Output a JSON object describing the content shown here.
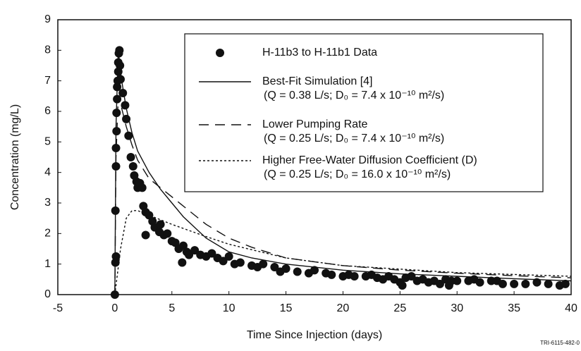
{
  "chart_data": {
    "type": "scatter-line",
    "xlabel": "Time Since Injection (days)",
    "ylabel": "Concentration (mg/L)",
    "figure_id": "TRI-6115-482-0",
    "xlim": [
      -5,
      40
    ],
    "xticks": [
      -5,
      0,
      5,
      10,
      15,
      20,
      25,
      30,
      35,
      40
    ],
    "ylim": [
      0,
      9
    ],
    "yticks": [
      0,
      1,
      2,
      3,
      4,
      5,
      6,
      7,
      8,
      9
    ],
    "series": [
      {
        "name": "H-11b3 to H-11b1 Data",
        "style": "markers",
        "color": "#111111",
        "x": [
          0,
          0.05,
          0.1,
          0.05,
          0.1,
          0.1,
          0.15,
          0.15,
          0.2,
          0.2,
          0.25,
          0.3,
          0.3,
          0.35,
          0.4,
          0.45,
          0.5,
          0.7,
          0.9,
          1.0,
          1.2,
          1.4,
          1.6,
          1.7,
          1.9,
          2.0,
          2.2,
          2.4,
          2.5,
          2.7,
          2.7,
          3.0,
          3.3,
          3.5,
          3.9,
          4.0,
          4.3,
          4.6,
          5.0,
          5.3,
          5.6,
          5.9,
          6.0,
          6.3,
          6.5,
          7.0,
          7.5,
          8.0,
          8.5,
          9.0,
          9.5,
          10.0,
          10.5,
          11,
          12,
          12.5,
          13,
          14,
          14.5,
          15,
          16,
          17,
          17.5,
          18.5,
          19,
          20,
          20.5,
          21,
          22,
          22.5,
          23,
          23.5,
          24,
          24.5,
          25,
          25.2,
          25.5,
          26,
          26.5,
          27,
          27.5,
          28,
          28.5,
          29,
          29.3,
          29.5,
          30,
          31,
          31.5,
          32,
          33,
          33.5,
          34,
          35,
          36,
          37,
          38,
          39,
          39.5
        ],
        "values": [
          0,
          1.05,
          1.25,
          2.75,
          4.2,
          4.8,
          5.35,
          5.95,
          6.4,
          6.8,
          7.0,
          7.3,
          7.6,
          7.9,
          8.0,
          7.5,
          7.05,
          6.6,
          6.2,
          5.75,
          5.2,
          4.5,
          4.2,
          3.9,
          3.7,
          3.5,
          3.65,
          3.5,
          2.9,
          2.7,
          1.95,
          2.6,
          2.4,
          2.2,
          2.05,
          2.3,
          1.95,
          2.0,
          1.75,
          1.7,
          1.5,
          1.05,
          1.6,
          1.4,
          1.3,
          1.45,
          1.3,
          1.25,
          1.35,
          1.2,
          1.1,
          1.25,
          1.0,
          1.05,
          0.95,
          0.9,
          1.0,
          0.9,
          0.75,
          0.85,
          0.75,
          0.7,
          0.8,
          0.7,
          0.65,
          0.6,
          0.65,
          0.6,
          0.6,
          0.65,
          0.55,
          0.5,
          0.6,
          0.5,
          0.4,
          0.3,
          0.55,
          0.6,
          0.45,
          0.5,
          0.4,
          0.45,
          0.35,
          0.5,
          0.3,
          0.45,
          0.45,
          0.45,
          0.5,
          0.4,
          0.45,
          0.45,
          0.35,
          0.35,
          0.35,
          0.4,
          0.35,
          0.3,
          0.35
        ]
      },
      {
        "name": "Best-Fit Simulation [4]",
        "params": "(Q = 0.38 L/s; D₀ = 7.4 x 10⁻¹⁰ m²/s)",
        "style": "solid",
        "color": "#111111",
        "x": [
          0,
          0.1,
          0.3,
          0.6,
          1,
          1.5,
          2,
          3,
          4,
          5,
          6,
          8,
          10,
          12,
          15,
          20,
          25,
          30,
          35,
          40
        ],
        "values": [
          0,
          5.5,
          8.0,
          7.0,
          6.1,
          5.3,
          4.7,
          4.0,
          3.45,
          3.0,
          2.55,
          1.85,
          1.4,
          1.2,
          1.0,
          0.8,
          0.68,
          0.6,
          0.52,
          0.45
        ]
      },
      {
        "name": "Lower Pumping Rate",
        "params": "(Q = 0.25 L/s; D₀ = 7.4 x 10⁻¹⁰ m²/s)",
        "style": "dashed",
        "color": "#111111",
        "x": [
          0,
          0.1,
          0.3,
          0.6,
          1,
          1.5,
          2,
          3,
          5,
          8,
          10,
          12,
          15,
          20,
          25,
          30,
          35,
          40
        ],
        "values": [
          0,
          4.5,
          6.5,
          6.1,
          5.5,
          4.9,
          4.4,
          3.8,
          3.2,
          2.3,
          1.85,
          1.55,
          1.2,
          0.95,
          0.8,
          0.7,
          0.62,
          0.55
        ]
      },
      {
        "name": "Higher Free-Water Diffusion Coefficient (D)",
        "params": "(Q = 0.25 L/s; D₀ = 16.0 x 10⁻¹⁰ m²/s)",
        "style": "dotted",
        "color": "#111111",
        "x": [
          0,
          0.5,
          1,
          1.5,
          2,
          3,
          5,
          8,
          10,
          15,
          20,
          30,
          40
        ],
        "values": [
          0,
          1.5,
          2.5,
          2.75,
          2.75,
          2.6,
          2.3,
          1.9,
          1.65,
          1.2,
          0.95,
          0.72,
          0.6
        ]
      }
    ]
  }
}
